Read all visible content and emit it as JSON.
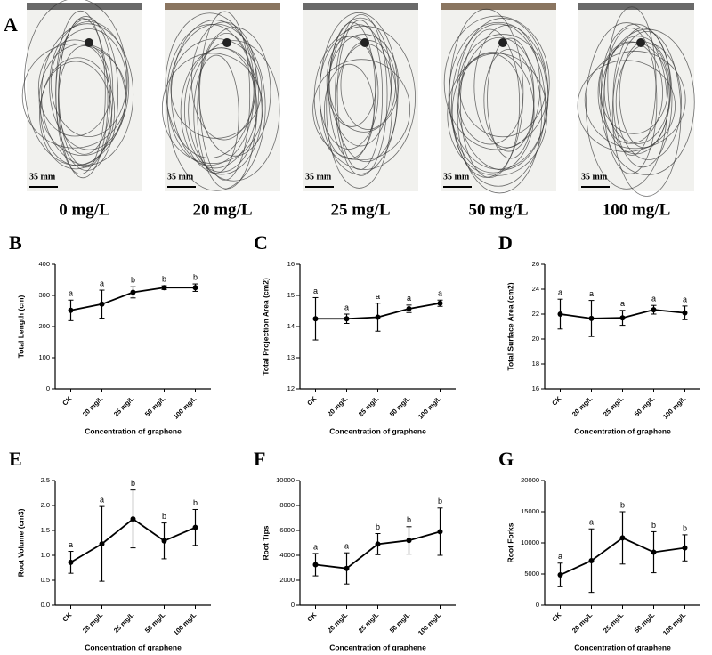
{
  "panel_a": {
    "label": "A",
    "images": [
      {
        "concentration": "0 mg/L",
        "scale": "35 mm"
      },
      {
        "concentration": "20 mg/L",
        "scale": "35 mm"
      },
      {
        "concentration": "25 mg/L",
        "scale": "35 mm"
      },
      {
        "concentration": "50 mg/L",
        "scale": "35 mm"
      },
      {
        "concentration": "100 mg/L",
        "scale": "35 mm"
      }
    ]
  },
  "chart_data": [
    {
      "type": "line",
      "panel": "B",
      "y_label": "Total Length (cm)",
      "x_label": "Concentration of graphene",
      "categories": [
        "CK",
        "20 mg/L",
        "25 mg/L",
        "50 mg/L",
        "100 mg/L"
      ],
      "values": [
        252,
        272,
        310,
        325,
        325
      ],
      "errors": [
        33,
        45,
        18,
        6,
        12
      ],
      "annotations": [
        "a",
        "a",
        "b",
        "b",
        "b"
      ],
      "ylim": [
        0,
        400
      ],
      "yticks": [
        0,
        100,
        200,
        300,
        400
      ],
      "color": "#000000"
    },
    {
      "type": "line",
      "panel": "C",
      "y_label": "Total Projection Area (cm2)",
      "x_label": "Concentration of graphene",
      "categories": [
        "CK",
        "20 mg/L",
        "25 mg/L",
        "50 mg/L",
        "100 mg/L"
      ],
      "values": [
        14.25,
        14.25,
        14.3,
        14.57,
        14.75
      ],
      "errors": [
        0.68,
        0.15,
        0.45,
        0.12,
        0.1
      ],
      "annotations": [
        "a",
        "a",
        "a",
        "a",
        "a"
      ],
      "ylim": [
        12,
        16
      ],
      "yticks": [
        12,
        13,
        14,
        15,
        16
      ],
      "color": "#000000"
    },
    {
      "type": "line",
      "panel": "D",
      "y_label": "Total Surface Area (cm2)",
      "x_label": "Concentration of graphene",
      "categories": [
        "CK",
        "20 mg/L",
        "25 mg/L",
        "50 mg/L",
        "100 mg/L"
      ],
      "values": [
        22.0,
        21.65,
        21.7,
        22.35,
        22.1
      ],
      "errors": [
        1.2,
        1.45,
        0.6,
        0.35,
        0.55
      ],
      "annotations": [
        "a",
        "a",
        "a",
        "a",
        "a"
      ],
      "ylim": [
        16,
        26
      ],
      "yticks": [
        16,
        18,
        20,
        22,
        24,
        26
      ],
      "color": "#000000"
    },
    {
      "type": "line",
      "panel": "E",
      "y_label": "Root Volume (cm3)",
      "x_label": "Concentration of graphene",
      "categories": [
        "CK",
        "20 mg/L",
        "25 mg/L",
        "50 mg/L",
        "100 mg/L"
      ],
      "values": [
        0.86,
        1.23,
        1.73,
        1.29,
        1.56
      ],
      "errors": [
        0.22,
        0.75,
        0.58,
        0.36,
        0.36
      ],
      "annotations": [
        "a",
        "a",
        "b",
        "b",
        "b"
      ],
      "ylim": [
        0,
        2.5
      ],
      "yticks": [
        {
          "value": 0,
          "label": "0.0"
        },
        0.5,
        {
          "value": 1,
          "label": "1.0"
        },
        1.5,
        {
          "value": 2,
          "label": "2.0"
        },
        2.5
      ],
      "color": "#000000"
    },
    {
      "type": "line",
      "panel": "F",
      "y_label": "Root Tips",
      "x_label": "Concentration of graphene",
      "categories": [
        "CK",
        "20 mg/L",
        "25 mg/L",
        "50 mg/L",
        "100 mg/L"
      ],
      "values": [
        3250,
        2950,
        4900,
        5200,
        5900
      ],
      "errors": [
        900,
        1250,
        850,
        1100,
        1900
      ],
      "annotations": [
        "a",
        "a",
        "b",
        "b",
        "b"
      ],
      "ylim": [
        0,
        10000
      ],
      "yticks": [
        0,
        2000,
        4000,
        6000,
        8000,
        10000
      ],
      "color": "#000000"
    },
    {
      "type": "line",
      "panel": "G",
      "y_label": "Root Forks",
      "x_label": "Concentration of graphene",
      "categories": [
        "CK",
        "20 mg/L",
        "25 mg/L",
        "50 mg/L",
        "100 mg/L"
      ],
      "values": [
        4850,
        7150,
        10800,
        8500,
        9200
      ],
      "errors": [
        1900,
        5100,
        4200,
        3300,
        2100
      ],
      "annotations": [
        "a",
        "a",
        "b",
        "b",
        "b"
      ],
      "ylim": [
        0,
        20000
      ],
      "yticks": [
        0,
        5000,
        10000,
        15000,
        20000
      ],
      "color": "#000000"
    }
  ]
}
